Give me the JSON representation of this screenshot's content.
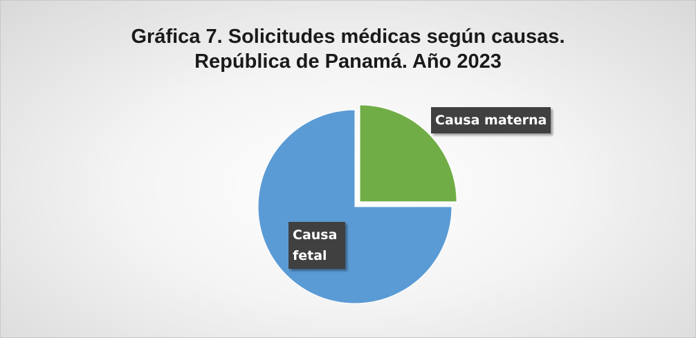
{
  "chart_data": {
    "type": "pie",
    "title": [
      "Gráfica 7. Solicitudes médicas según causas.",
      "República de Panamá. Año 2023"
    ],
    "categories": [
      "Causa materna",
      "Causa fetal"
    ],
    "values": [
      25,
      75
    ],
    "colors": [
      "#70ad47",
      "#5b9bd5"
    ],
    "explode": [
      true,
      false
    ]
  }
}
